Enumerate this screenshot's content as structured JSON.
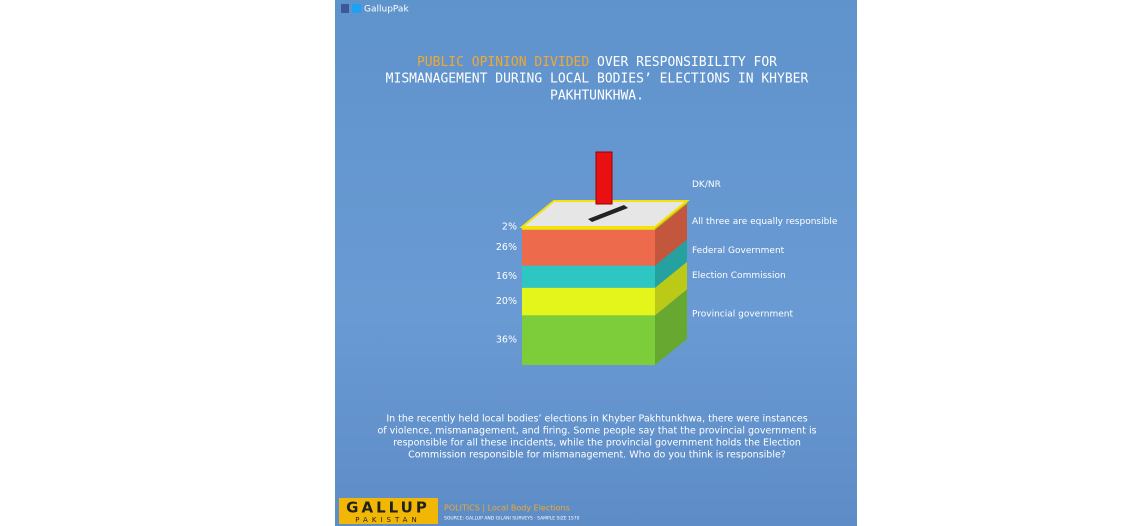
{
  "header": {
    "handle": "GallupPak"
  },
  "chart_data": {
    "type": "stacked-box",
    "title_parts": [
      "PUBLIC OPINION DIVIDED",
      " OVER RESPONSIBILITY FOR",
      "MISMANAGEMENT DURING LOCAL BODIES’ ELECTIONS IN KHYBER",
      "PAKHTUNKHWA."
    ],
    "series": [
      {
        "name": "DK/NR",
        "color": "#f4e20a",
        "values": [
          2
        ],
        "value_labels": [
          "2%"
        ]
      },
      {
        "name": "All three are equally responsible",
        "color": "#ee6a4c",
        "values": [
          26
        ],
        "value_labels": [
          "26%"
        ]
      },
      {
        "name": "Federal Government",
        "color": "#2dc6c2",
        "values": [
          16
        ],
        "value_labels": [
          "16%"
        ]
      },
      {
        "name": "Election Commission",
        "color": "#e4f51c",
        "values": [
          20
        ],
        "value_labels": [
          "20%"
        ]
      },
      {
        "name": "Provincial government",
        "color": "#7dcd3b",
        "values": [
          36
        ],
        "value_labels": [
          "36%"
        ]
      }
    ]
  },
  "body": [
    "In the recently held local bodies’ elections in Khyber Pakhtunkhwa, there were instances",
    "of violence, mismanagement, and firing. Some people say that the provincial government is",
    "responsible for all these incidents, while the provincial government holds the Election",
    "Commission responsible for mismanagement. Who do you think is responsible?"
  ],
  "footer": {
    "logo": "GALLUP",
    "logo_sub": "PAKISTAN",
    "section": "POLITICS | Local Body Elections",
    "source": "SOURCE: GALLUP AND GILANI SURVEYS · SAMPLE SIZE 1570"
  }
}
